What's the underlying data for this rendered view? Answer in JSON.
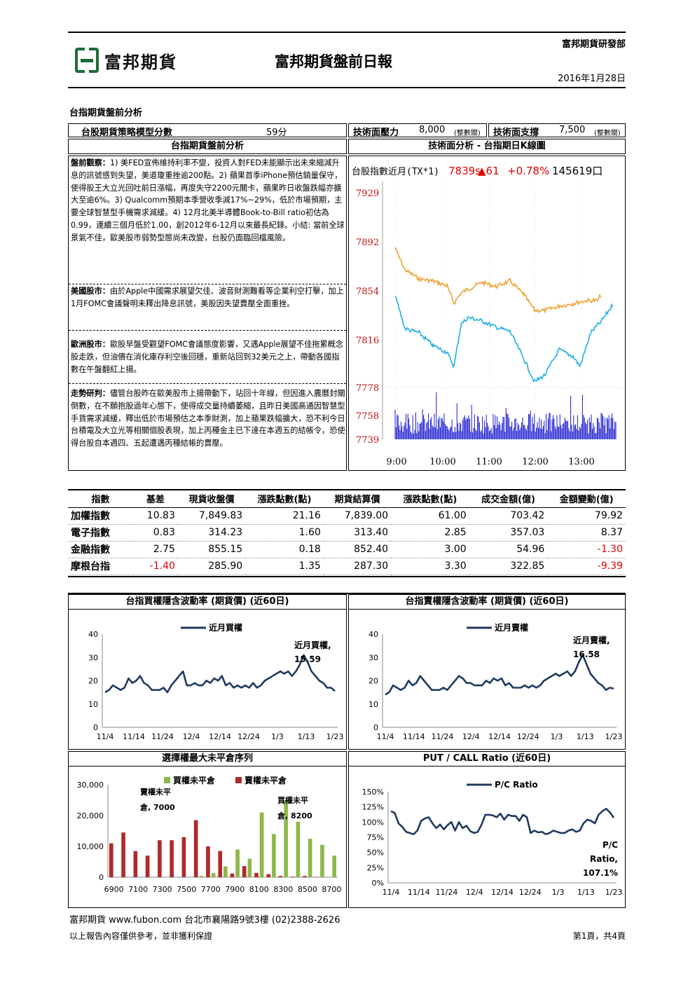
{
  "header": {
    "department": "富邦期貨研發部",
    "logo_text": "富邦期貨",
    "title": "富邦期貨盤前日報",
    "date": "2016年1月28日"
  },
  "section_title": "台指期貨盤前分析",
  "strategy": {
    "label": "台股期貨策略模型分數",
    "score": "59分",
    "resistance_label": "技術面壓力",
    "resistance_value": "8,000",
    "resistance_note": "(整數關)",
    "support_label": "技術面支撐",
    "support_value": "7,500",
    "support_note": "(整數關)"
  },
  "analysis": {
    "left_title": "台指期貨盤前分析",
    "right_title": "技術面分析 - 台指期日K線圖",
    "p1_label": "盤前觀察：",
    "p1": "1) 美FED宣佈維持利率不變，投資人對FED未能顯示出未來縮減升息的訊號感到失望，美道瓊重挫逾200點。2) 蘋果首季iPhone預估銷量保守，使得股王大立光回吐前日漲幅，再度失守2200元關卡，蘋果昨日收盤跌幅亦擴大至逾6%。3) Qualcomm預期本季營收季減17%~29%，低於市場預期，主要全球智慧型手機需求減緩。4) 12月北美半導體Book-to-Bill ratio初估為0.99，連續三個月低於1.00，創2012年6-12月以來最長紀錄。小結: 當前全球景氣不佳，歐美股市弱勢型態尚未改變，台股仍面臨回檔風險。",
    "p2_label": "美國股市：",
    "p2": "由於Apple中國需求展望欠佳、波音財測難看等企業利空打擊，加上1月FOMC會議聲明未釋出降息訊號，美股因失望賣壓全面重挫。",
    "p3_label": "歐洲股市：",
    "p3": "歐股早盤受觀望FOMC會議態度影響，又遇Apple展望不佳拖累概念股走跌，但油價在消化庫存利空後回穩，重新站回到32美元之上，帶動各國指數在午盤翻紅上揚。",
    "p4_label": "走勢研判：",
    "p4": "儘管台股昨在歐美股市上揚帶動下，站回十年線，但因進入農曆封關倒數，在不願抱股過年心態下，使得成交量持續萎縮，且昨日美國高通因智慧型手貨需求減緩，釋出低於市場預估之本季財測，加上蘋果跌幅擴大，恐不利今日台積電及大立光等相關個股表現，加上丙種金主已下達在本週五的結帳令，恐使得台股自本週四、五起遭遇丙種結帳的賣壓。"
  },
  "kline": {
    "ticker_line": "台股指數近月(TX*1)",
    "price": "7839s",
    "change": "▲61",
    "pct": "+0.78%",
    "volume": "145619口",
    "y_labels": [
      "7929",
      "7892",
      "7854",
      "7816",
      "7778",
      "7758",
      "7739"
    ],
    "x_labels": [
      "9:00",
      "10:00",
      "11:00",
      "12:00",
      "13:00"
    ],
    "orange_color": "#f0a030",
    "blue_color": "#1ab0e8",
    "vol_color": "#1a1ad0"
  },
  "index_table": {
    "headers": [
      "指數",
      "基差",
      "現貨收盤價",
      "漲跌點數(點)",
      "期貨結算價",
      "漲跌點數(點)",
      "成交金額(億)",
      "金額變動(億)"
    ],
    "rows": [
      [
        "加權指數",
        "10.83",
        "7,849.83",
        "21.16",
        "7,839.00",
        "61.00",
        "703.42",
        "79.92"
      ],
      [
        "電子指數",
        "0.83",
        "314.23",
        "1.60",
        "313.40",
        "2.85",
        "357.03",
        "8.37"
      ],
      [
        "金融指數",
        "2.75",
        "855.15",
        "0.18",
        "852.40",
        "3.00",
        "54.96",
        "-1.30"
      ],
      [
        "摩根台指",
        "-1.40",
        "285.90",
        "1.35",
        "287.30",
        "3.30",
        "322.85",
        "-9.39"
      ]
    ]
  },
  "chart_data": [
    {
      "type": "line",
      "title": "台指買權隱含波動率 (期貨價) (近60日)",
      "x_ticks": [
        "11/4",
        "11/14",
        "11/24",
        "12/4",
        "12/14",
        "12/24",
        "1/3",
        "1/13",
        "1/23"
      ],
      "y_ticks": [
        "0",
        "10",
        "20",
        "30",
        "40"
      ],
      "ylim": [
        0,
        40
      ],
      "series": [
        {
          "name": "近月買權",
          "values": [
            15,
            16,
            18,
            17,
            16,
            17,
            21,
            19,
            20,
            22,
            19,
            18,
            16,
            16,
            16,
            17,
            15,
            18,
            20,
            22,
            24,
            18,
            18,
            19,
            18,
            18,
            20,
            19,
            21,
            20,
            22,
            18,
            19,
            17,
            18,
            17,
            18,
            17,
            19,
            17,
            18,
            20,
            21,
            22,
            23,
            24,
            23,
            24,
            22,
            24,
            27,
            31,
            28,
            24,
            22,
            20,
            19,
            17,
            17,
            15.59
          ]
        }
      ],
      "annotation": [
        "近月買權,",
        "15.59"
      ],
      "line_color": "#1f3a60"
    },
    {
      "type": "line",
      "title": "台指賣權隱含波動率 (期貨價) (近60日)",
      "x_ticks": [
        "11/4",
        "11/14",
        "11/24",
        "12/4",
        "12/14",
        "12/24",
        "1/3",
        "1/13",
        "1/23"
      ],
      "y_ticks": [
        "0",
        "10",
        "20",
        "30",
        "40"
      ],
      "ylim": [
        0,
        40
      ],
      "series": [
        {
          "name": "近月賣權",
          "values": [
            14,
            15,
            18,
            17,
            16,
            17,
            20,
            18,
            19,
            22,
            20,
            18,
            16,
            16,
            16,
            17,
            16,
            18,
            20,
            22,
            21,
            19,
            19,
            18,
            18,
            18,
            20,
            19,
            21,
            20,
            21,
            18,
            19,
            17,
            17,
            17,
            18,
            17,
            18,
            17,
            18,
            20,
            21,
            22,
            23,
            22,
            23,
            24,
            22,
            24,
            28,
            31,
            27,
            23,
            21,
            19,
            18,
            16,
            17,
            16.58
          ]
        }
      ],
      "annotation": [
        "近月賣權,",
        "16.58"
      ],
      "line_color": "#1f3a60"
    },
    {
      "type": "bar",
      "title": "選擇權最大未平倉序列",
      "categories": [
        "6900",
        "7000",
        "7100",
        "7200",
        "7300",
        "7400",
        "7500",
        "7600",
        "7700",
        "7800",
        "7900",
        "8000",
        "8100",
        "8200",
        "8300",
        "8400",
        "8500",
        "8600",
        "8700"
      ],
      "x_ticks": [
        "6900",
        "7100",
        "7300",
        "7500",
        "7700",
        "7900",
        "8100",
        "8300",
        "8500",
        "8700"
      ],
      "y_ticks": [
        "0",
        "10,000",
        "20,000",
        "30,000"
      ],
      "ylim": [
        0,
        30000
      ],
      "series": [
        {
          "name": "買權未平倉",
          "color": "#8db84a",
          "values": [
            0,
            0,
            0,
            0,
            0,
            0,
            0,
            400,
            1300,
            3500,
            9000,
            6000,
            21000,
            14000,
            25000,
            18000,
            12500,
            10500,
            7000
          ]
        },
        {
          "name": "賣權未平倉",
          "color": "#b02a2a",
          "values": [
            11000,
            14500,
            8500,
            7000,
            12000,
            12000,
            13000,
            18500,
            10000,
            8500,
            1200,
            3600,
            1400,
            1000,
            400,
            200,
            400,
            100,
            0
          ]
        }
      ],
      "annotations": [
        [
          "賣權未平",
          "倉, 7000"
        ],
        [
          "買權未平",
          "倉, 8200"
        ]
      ]
    },
    {
      "type": "line",
      "title": "PUT / CALL Ratio (近60日)",
      "x_ticks": [
        "11/4",
        "11/14",
        "11/24",
        "12/4",
        "12/14",
        "12/24",
        "1/3",
        "1/13",
        "1/23"
      ],
      "y_ticks": [
        "0%",
        "25%",
        "50%",
        "75%",
        "100%",
        "125%",
        "150%"
      ],
      "ylim": [
        0,
        150
      ],
      "series": [
        {
          "name": "P/C Ratio",
          "values": [
            118,
            115,
            98,
            92,
            84,
            82,
            80,
            86,
            102,
            106,
            108,
            98,
            90,
            96,
            88,
            95,
            100,
            86,
            100,
            90,
            94,
            85,
            82,
            84,
            96,
            112,
            112,
            111,
            108,
            114,
            104,
            112,
            110,
            110,
            102,
            112,
            108,
            82,
            86,
            83,
            84,
            80,
            82,
            86,
            84,
            82,
            82,
            86,
            88,
            84,
            86,
            98,
            104,
            102,
            98,
            112,
            118,
            122,
            116,
            107.1
          ]
        }
      ],
      "annotation": [
        "P/C",
        "Ratio,",
        "107.1%"
      ],
      "line_color": "#1f3a60"
    }
  ],
  "footer": {
    "line1": "富邦期貨 www.fubon.com 台北市襄陽路9號3樓 (02)2388-2626",
    "line2": "以上報告內容僅供參考，並非獲利保證",
    "page": "第1頁，共4頁"
  }
}
